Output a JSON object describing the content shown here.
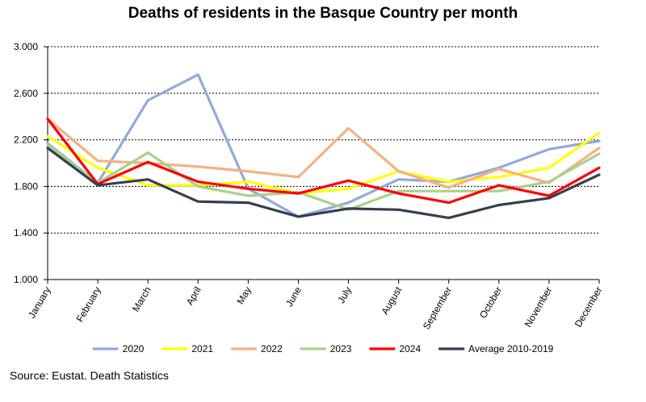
{
  "chart_data": {
    "type": "line",
    "title": "Deaths of residents in the Basque Country per month",
    "xlabel": "",
    "ylabel": "",
    "categories": [
      "January",
      "February",
      "March",
      "April",
      "May",
      "June",
      "July",
      "August",
      "September",
      "October",
      "November",
      "December"
    ],
    "ylim": [
      1000,
      3000
    ],
    "yticks": [
      1000,
      1400,
      1800,
      2200,
      2600,
      3000
    ],
    "ytick_labels": [
      "1.000",
      "1.400",
      "1.800",
      "2.200",
      "2.600",
      "3.000"
    ],
    "grid": "horizontal dashed",
    "legend_position": "bottom",
    "series": [
      {
        "name": "2020",
        "color": "#8faadc",
        "values": [
          2170,
          1830,
          2540,
          2760,
          1780,
          1540,
          1660,
          1860,
          1840,
          1960,
          2120,
          2190
        ]
      },
      {
        "name": "2021",
        "color": "#ffff00",
        "values": [
          2230,
          1960,
          1810,
          1810,
          1840,
          1740,
          1780,
          1930,
          1840,
          1880,
          1960,
          2260
        ]
      },
      {
        "name": "2022",
        "color": "#f4b183",
        "values": [
          2380,
          2020,
          2000,
          1970,
          1930,
          1880,
          2300,
          1930,
          1790,
          1950,
          1830,
          2130
        ]
      },
      {
        "name": "2023",
        "color": "#a9d18e",
        "values": [
          2160,
          1830,
          2090,
          1800,
          1720,
          1750,
          1600,
          1760,
          1760,
          1760,
          1840,
          2080
        ]
      },
      {
        "name": "2024",
        "color": "#ff0000",
        "values": [
          2380,
          1820,
          2010,
          1840,
          1780,
          1740,
          1850,
          1740,
          1660,
          1810,
          1720,
          1960
        ]
      },
      {
        "name": "Average 2010-2019",
        "color": "#333f50",
        "values": [
          2130,
          1810,
          1860,
          1670,
          1660,
          1540,
          1610,
          1600,
          1530,
          1640,
          1700,
          1900
        ]
      }
    ]
  },
  "footer": {
    "source": "Source: Eustat. Death Statistics"
  }
}
